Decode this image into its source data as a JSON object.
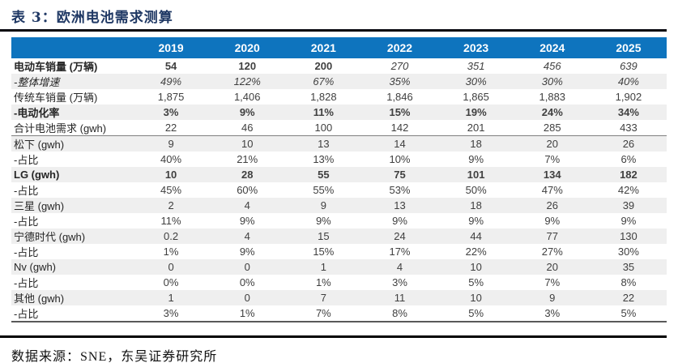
{
  "caption": "表 3：欧洲电池需求测算",
  "source_note": "数据来源：SNE，东吴证券研究所",
  "colors": {
    "header_bg": "#0e74be",
    "header_text": "#ffffff",
    "stripe_bg": "#efefef",
    "caption_text": "#1f3864",
    "body_text": "#404040"
  },
  "table": {
    "label_header": "",
    "years": [
      "2019",
      "2020",
      "2021",
      "2022",
      "2023",
      "2024",
      "2025"
    ],
    "rows": [
      {
        "label": "电动车销量 (万辆)",
        "label_style": "bold",
        "values": [
          "54",
          "120",
          "200",
          "270",
          "351",
          "456",
          "639"
        ],
        "value_style": [
          "bold",
          "bold",
          "bold",
          "italic",
          "italic",
          "italic",
          "italic"
        ],
        "shaded": false,
        "rule_below": false
      },
      {
        "label": "-整体增速",
        "label_style": "italic",
        "values": [
          "49%",
          "122%",
          "67%",
          "35%",
          "30%",
          "30%",
          "40%"
        ],
        "value_style": "italic",
        "shaded": true,
        "rule_below": false
      },
      {
        "label": "传统车销量 (万辆)",
        "label_style": "normal",
        "values": [
          "1,875",
          "1,406",
          "1,828",
          "1,846",
          "1,865",
          "1,883",
          "1,902"
        ],
        "value_style": "normal",
        "shaded": false,
        "rule_below": false
      },
      {
        "label": "-电动化率",
        "label_style": "bold",
        "values": [
          "3%",
          "9%",
          "11%",
          "15%",
          "19%",
          "24%",
          "34%"
        ],
        "value_style": "bold",
        "shaded": true,
        "rule_below": false
      },
      {
        "label": "合计电池需求 (gwh)",
        "label_style": "normal",
        "values": [
          "22",
          "46",
          "100",
          "142",
          "201",
          "285",
          "433"
        ],
        "value_style": "normal",
        "shaded": false,
        "rule_below": true
      },
      {
        "label": "松下 (gwh)",
        "label_style": "normal",
        "values": [
          "9",
          "10",
          "13",
          "14",
          "18",
          "20",
          "26"
        ],
        "value_style": "normal",
        "shaded": true,
        "rule_below": false
      },
      {
        "label": "-占比",
        "label_style": "normal",
        "values": [
          "40%",
          "21%",
          "13%",
          "10%",
          "9%",
          "7%",
          "6%"
        ],
        "value_style": "normal",
        "shaded": false,
        "rule_below": false
      },
      {
        "label": "LG (gwh)",
        "label_style": "bold",
        "values": [
          "10",
          "28",
          "55",
          "75",
          "101",
          "134",
          "182"
        ],
        "value_style": "bold",
        "shaded": true,
        "rule_below": false
      },
      {
        "label": "-占比",
        "label_style": "normal",
        "values": [
          "45%",
          "60%",
          "55%",
          "53%",
          "50%",
          "47%",
          "42%"
        ],
        "value_style": "normal",
        "shaded": false,
        "rule_below": false
      },
      {
        "label": "三星 (gwh)",
        "label_style": "normal",
        "values": [
          "2",
          "4",
          "9",
          "13",
          "18",
          "26",
          "39"
        ],
        "value_style": "normal",
        "shaded": true,
        "rule_below": false
      },
      {
        "label": "-占比",
        "label_style": "normal",
        "values": [
          "11%",
          "9%",
          "9%",
          "9%",
          "9%",
          "9%",
          "9%"
        ],
        "value_style": "normal",
        "shaded": false,
        "rule_below": false
      },
      {
        "label": "宁德时代 (gwh)",
        "label_style": "normal",
        "values": [
          "0.2",
          "4",
          "15",
          "24",
          "44",
          "77",
          "130"
        ],
        "value_style": "normal",
        "shaded": true,
        "rule_below": false
      },
      {
        "label": "-占比",
        "label_style": "normal",
        "values": [
          "1%",
          "9%",
          "15%",
          "17%",
          "22%",
          "27%",
          "30%"
        ],
        "value_style": "normal",
        "shaded": false,
        "rule_below": false
      },
      {
        "label": "Nv (gwh)",
        "label_style": "normal",
        "values": [
          "0",
          "0",
          "1",
          "4",
          "10",
          "20",
          "35"
        ],
        "value_style": "normal",
        "shaded": true,
        "rule_below": false
      },
      {
        "label": "-占比",
        "label_style": "normal",
        "values": [
          "0%",
          "0%",
          "1%",
          "3%",
          "5%",
          "7%",
          "8%"
        ],
        "value_style": "normal",
        "shaded": false,
        "rule_below": false
      },
      {
        "label": "其他 (gwh)",
        "label_style": "normal",
        "values": [
          "1",
          "0",
          "7",
          "11",
          "10",
          "9",
          "22"
        ],
        "value_style": "normal",
        "shaded": true,
        "rule_below": false
      },
      {
        "label": "-占比",
        "label_style": "normal",
        "values": [
          "3%",
          "1%",
          "7%",
          "8%",
          "5%",
          "3%",
          "5%"
        ],
        "value_style": "normal",
        "shaded": false,
        "rule_below": false
      }
    ]
  }
}
